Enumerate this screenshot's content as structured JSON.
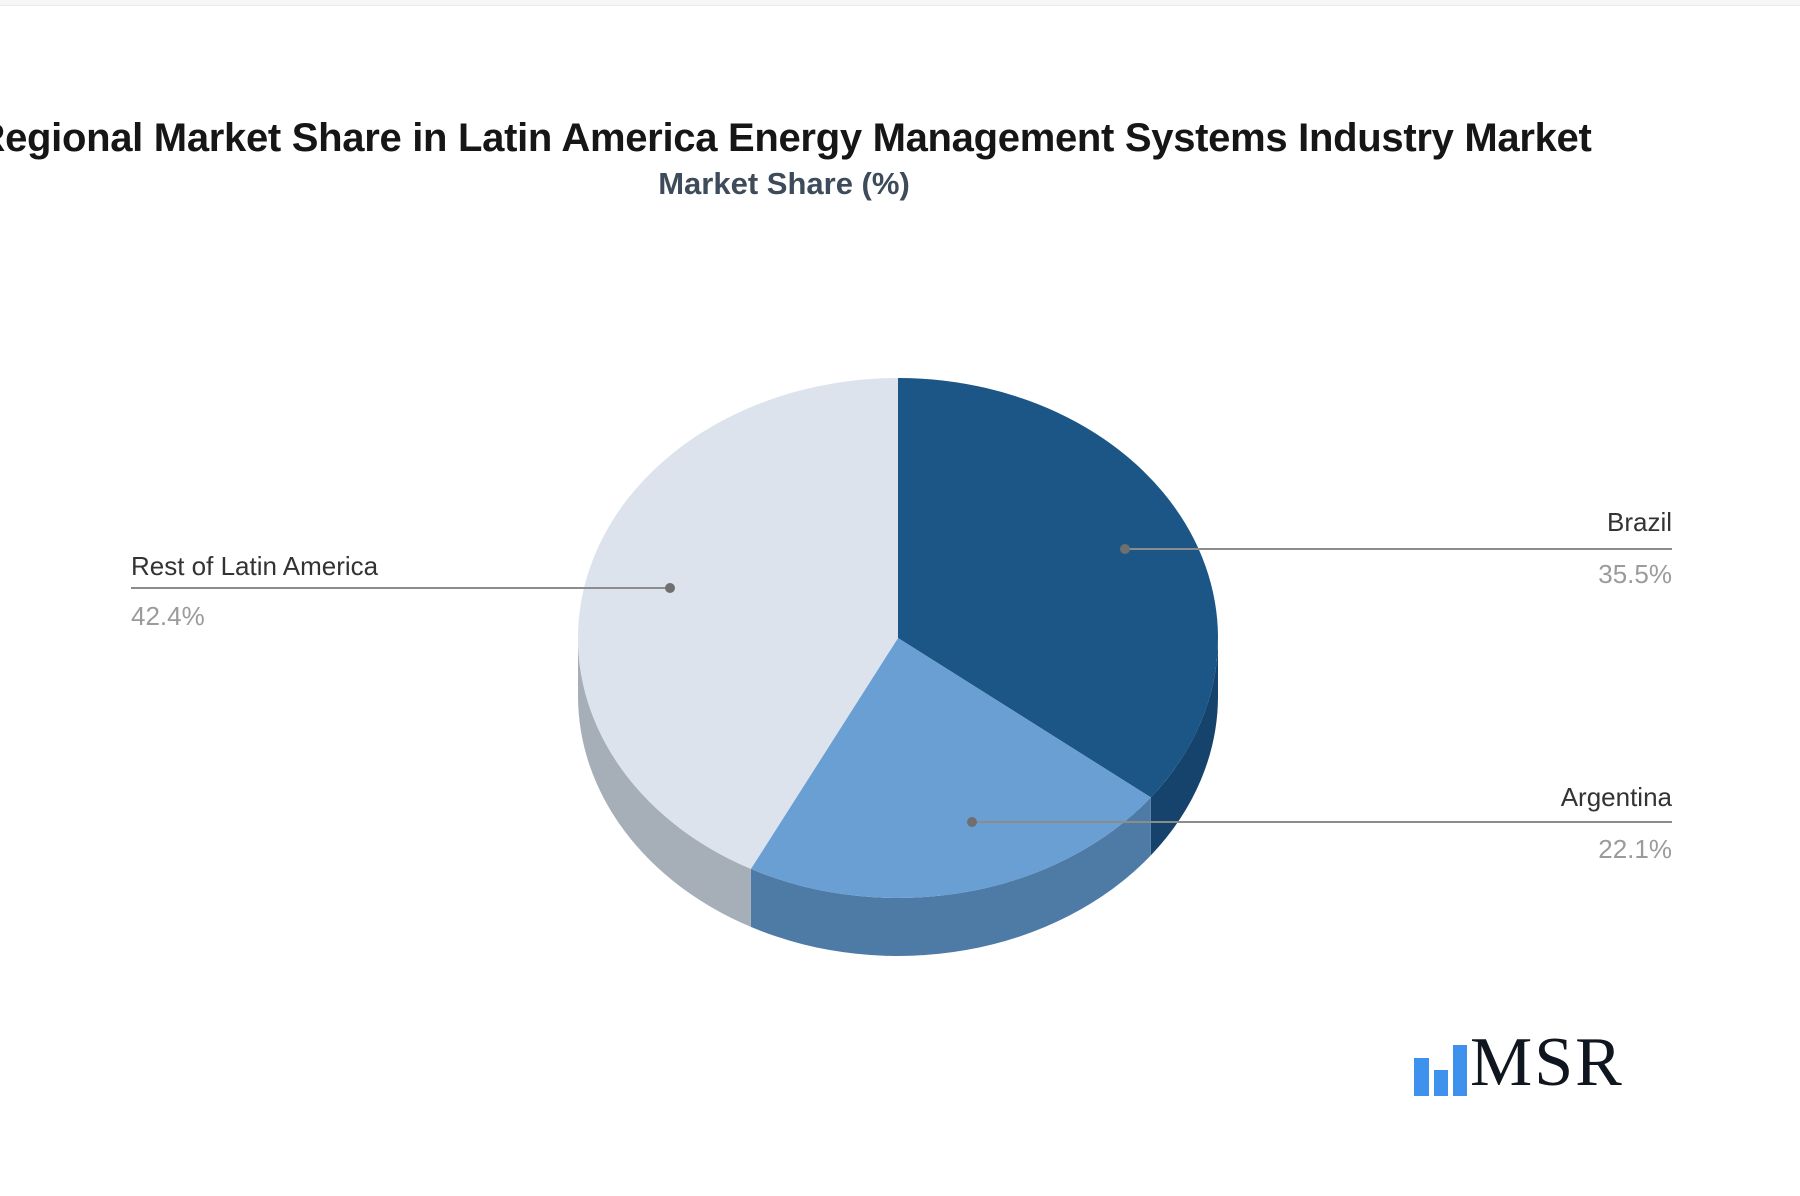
{
  "chart": {
    "title": "Regional Market Share in Latin America Energy Management Systems Industry Market",
    "subtitle": "Market Share (%)"
  },
  "chart_data": {
    "type": "pie",
    "style": "3d",
    "title": "Regional Market Share in Latin America Energy Management Systems Industry Market",
    "subtitle": "Market Share (%)",
    "unit": "%",
    "direction": "clockwise",
    "start_angle": "top",
    "legend": "none",
    "series": [
      {
        "name": "Brazil",
        "value": 35.5,
        "label": "35.5%",
        "color": "#1B5687",
        "side_color": "#15436C"
      },
      {
        "name": "Argentina",
        "value": 22.1,
        "label": "22.1%",
        "color": "#6A9FD3",
        "side_color": "#4E7BA6"
      },
      {
        "name": "Rest of Latin America",
        "value": 42.4,
        "label": "42.4%",
        "color": "#DCE3ED",
        "side_color": "#A6AEB8"
      }
    ],
    "leader_line_color": "#8C8C8C",
    "leader_dot_color": "#6F6F6F",
    "label_name_color": "#333333",
    "label_value_color": "#9B9B9B"
  },
  "branding": {
    "logo_text": "MSR",
    "logo_bar_color": "#3E92EE",
    "logo_text_color": "#10161F"
  }
}
